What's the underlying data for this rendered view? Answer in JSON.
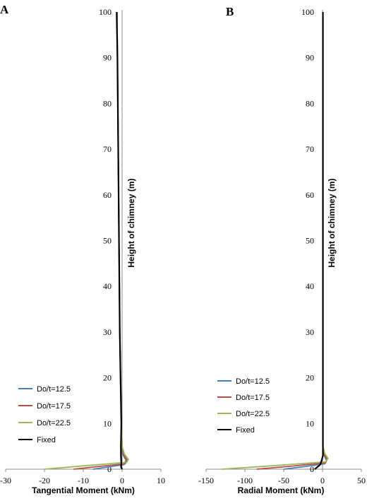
{
  "chart_data": [
    {
      "panel": "A",
      "type": "line",
      "xlabel": "Tangential Moment (kNm)",
      "ylabel": "Height of chimney (m)",
      "xlim": [
        -30,
        10
      ],
      "ylim": [
        0,
        100
      ],
      "x_ticks": [
        -30,
        -20,
        -10,
        0,
        10
      ],
      "y_ticks": [
        0,
        10,
        20,
        30,
        40,
        50,
        60,
        70,
        80,
        90,
        100
      ],
      "legend": "left",
      "series": [
        {
          "name": "Do/t=12.5",
          "color": "#4a7ebb",
          "points": [
            [
              -7.5,
              0
            ],
            [
              -3.5,
              0.5
            ],
            [
              0.5,
              1
            ],
            [
              1,
              2
            ],
            [
              0.3,
              3
            ],
            [
              0,
              5
            ],
            [
              -0.2,
              10
            ],
            [
              -0.4,
              20
            ],
            [
              -0.6,
              30
            ],
            [
              -0.7,
              40
            ],
            [
              -0.8,
              50
            ],
            [
              -0.9,
              60
            ],
            [
              -1,
              70
            ],
            [
              -1.1,
              80
            ],
            [
              -1.2,
              90
            ],
            [
              -1.3,
              100
            ]
          ]
        },
        {
          "name": "Do/t=17.5",
          "color": "#be4b48",
          "points": [
            [
              -12.5,
              0
            ],
            [
              -6,
              0.6
            ],
            [
              0.8,
              1.2
            ],
            [
              1.3,
              2
            ],
            [
              0.5,
              3
            ],
            [
              0,
              5
            ],
            [
              -0.2,
              10
            ],
            [
              -0.4,
              20
            ],
            [
              -0.6,
              30
            ],
            [
              -0.7,
              40
            ],
            [
              -0.8,
              50
            ],
            [
              -0.9,
              60
            ],
            [
              -1,
              70
            ],
            [
              -1.1,
              80
            ],
            [
              -1.2,
              90
            ],
            [
              -1.3,
              100
            ]
          ]
        },
        {
          "name": "Do/t=22.5",
          "color": "#98b954",
          "points": [
            [
              -20,
              0
            ],
            [
              -9,
              0.8
            ],
            [
              1.2,
              1.5
            ],
            [
              1.6,
              2.2
            ],
            [
              0.6,
              3.3
            ],
            [
              0,
              5
            ],
            [
              -0.2,
              10
            ],
            [
              -0.4,
              20
            ],
            [
              -0.6,
              30
            ],
            [
              -0.7,
              40
            ],
            [
              -0.8,
              50
            ],
            [
              -0.9,
              60
            ],
            [
              -1,
              70
            ],
            [
              -1.1,
              80
            ],
            [
              -1.2,
              90
            ],
            [
              -1.3,
              100
            ]
          ]
        },
        {
          "name": "Fixed",
          "color": "#000000",
          "points": [
            [
              0,
              0
            ],
            [
              -0.3,
              0.5
            ],
            [
              -0.2,
              1
            ],
            [
              -0.3,
              3
            ],
            [
              -0.3,
              5
            ],
            [
              -0.2,
              10
            ],
            [
              -0.4,
              20
            ],
            [
              -0.6,
              30
            ],
            [
              -0.7,
              40
            ],
            [
              -0.8,
              50
            ],
            [
              -0.9,
              60
            ],
            [
              -1,
              70
            ],
            [
              -1.1,
              80
            ],
            [
              -1.2,
              90
            ],
            [
              -1.4,
              100
            ]
          ]
        }
      ]
    },
    {
      "panel": "B",
      "type": "line",
      "xlabel": "Radial Moment (kNm)",
      "ylabel": "Height of chimney (m)",
      "xlim": [
        -150,
        50
      ],
      "ylim": [
        0,
        100
      ],
      "x_ticks": [
        -150,
        -100,
        -50,
        0,
        50
      ],
      "y_ticks": [
        0,
        10,
        20,
        30,
        40,
        50,
        60,
        70,
        80,
        90,
        100
      ],
      "legend": "left",
      "series": [
        {
          "name": "Do/t=12.5",
          "color": "#4a7ebb",
          "points": [
            [
              -50,
              0
            ],
            [
              -22,
              0.6
            ],
            [
              3,
              1.2
            ],
            [
              5,
              2
            ],
            [
              2,
              3
            ],
            [
              0.5,
              5
            ],
            [
              0.5,
              10
            ],
            [
              0.5,
              20
            ],
            [
              0.5,
              30
            ],
            [
              0.5,
              40
            ],
            [
              0.5,
              50
            ],
            [
              0.5,
              60
            ],
            [
              0.5,
              70
            ],
            [
              0.5,
              80
            ],
            [
              0.5,
              90
            ],
            [
              0.5,
              100
            ]
          ]
        },
        {
          "name": "Do/t=17.5",
          "color": "#be4b48",
          "points": [
            [
              -85,
              0
            ],
            [
              -38,
              0.7
            ],
            [
              4,
              1.4
            ],
            [
              6,
              2.2
            ],
            [
              2,
              3.2
            ],
            [
              0.5,
              5
            ],
            [
              0.5,
              10
            ],
            [
              0.5,
              20
            ],
            [
              0.5,
              30
            ],
            [
              0.5,
              40
            ],
            [
              0.5,
              50
            ],
            [
              0.5,
              60
            ],
            [
              0.5,
              70
            ],
            [
              0.5,
              80
            ],
            [
              0.5,
              90
            ],
            [
              0.5,
              100
            ]
          ]
        },
        {
          "name": "Do/t=22.5",
          "color": "#98b954",
          "points": [
            [
              -130,
              0
            ],
            [
              -60,
              0.8
            ],
            [
              4,
              1.6
            ],
            [
              7,
              2.4
            ],
            [
              3,
              3.4
            ],
            [
              0.5,
              5
            ],
            [
              0.5,
              10
            ],
            [
              0.5,
              20
            ],
            [
              0.5,
              30
            ],
            [
              0.5,
              40
            ],
            [
              0.5,
              50
            ],
            [
              0.5,
              60
            ],
            [
              0.5,
              70
            ],
            [
              0.5,
              80
            ],
            [
              0.5,
              90
            ],
            [
              0.5,
              100
            ]
          ]
        },
        {
          "name": "Fixed",
          "color": "#000000",
          "points": [
            [
              -10,
              0
            ],
            [
              -3,
              1
            ],
            [
              -1,
              2
            ],
            [
              0.5,
              3
            ],
            [
              0.5,
              5
            ],
            [
              0.5,
              10
            ],
            [
              0.5,
              20
            ],
            [
              0.5,
              30
            ],
            [
              0.5,
              40
            ],
            [
              0.5,
              50
            ],
            [
              0.5,
              60
            ],
            [
              0.5,
              70
            ],
            [
              0.5,
              80
            ],
            [
              0.5,
              90
            ],
            [
              0.5,
              100
            ]
          ]
        }
      ]
    }
  ]
}
